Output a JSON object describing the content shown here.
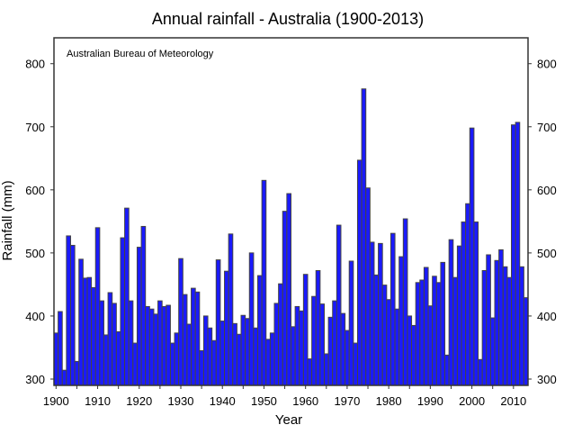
{
  "chart_data": {
    "type": "bar",
    "title": "Annual rainfall - Australia (1900-2013)",
    "xlabel": "Year",
    "ylabel": "Rainfall (mm)",
    "annotation": "Australian Bureau of Meteorology",
    "xlim": [
      1899.5,
      2013.5
    ],
    "ylim": [
      290,
      841
    ],
    "grid": false,
    "bar_color": "#1a1aff",
    "edge_color": "#444444",
    "xticks": [
      "1900",
      "1910",
      "1920",
      "1930",
      "1940",
      "1950",
      "1960",
      "1970",
      "1980",
      "1990",
      "2000",
      "2010"
    ],
    "yticks": [
      "300",
      "400",
      "500",
      "600",
      "700",
      "800"
    ],
    "x_start": 1900,
    "values": [
      373,
      407,
      314,
      527,
      512,
      328,
      490,
      460,
      461,
      445,
      540,
      424,
      370,
      437,
      420,
      375,
      524,
      571,
      424,
      357,
      509,
      542,
      415,
      411,
      403,
      424,
      415,
      417,
      357,
      373,
      491,
      434,
      387,
      444,
      438,
      345,
      400,
      381,
      361,
      489,
      392,
      471,
      530,
      388,
      371,
      401,
      396,
      500,
      381,
      464,
      615,
      363,
      373,
      420,
      451,
      566,
      594,
      383,
      415,
      408,
      466,
      332,
      431,
      472,
      419,
      340,
      398,
      424,
      544,
      404,
      377,
      487,
      357,
      647,
      760,
      603,
      517,
      465,
      515,
      449,
      426,
      531,
      411,
      494,
      554,
      400,
      385,
      453,
      457,
      477,
      416,
      463,
      453,
      485,
      338,
      521,
      461,
      511,
      549,
      578,
      698,
      549,
      331,
      472,
      497,
      397,
      488,
      505,
      478,
      461,
      703,
      707,
      478,
      429
    ]
  }
}
